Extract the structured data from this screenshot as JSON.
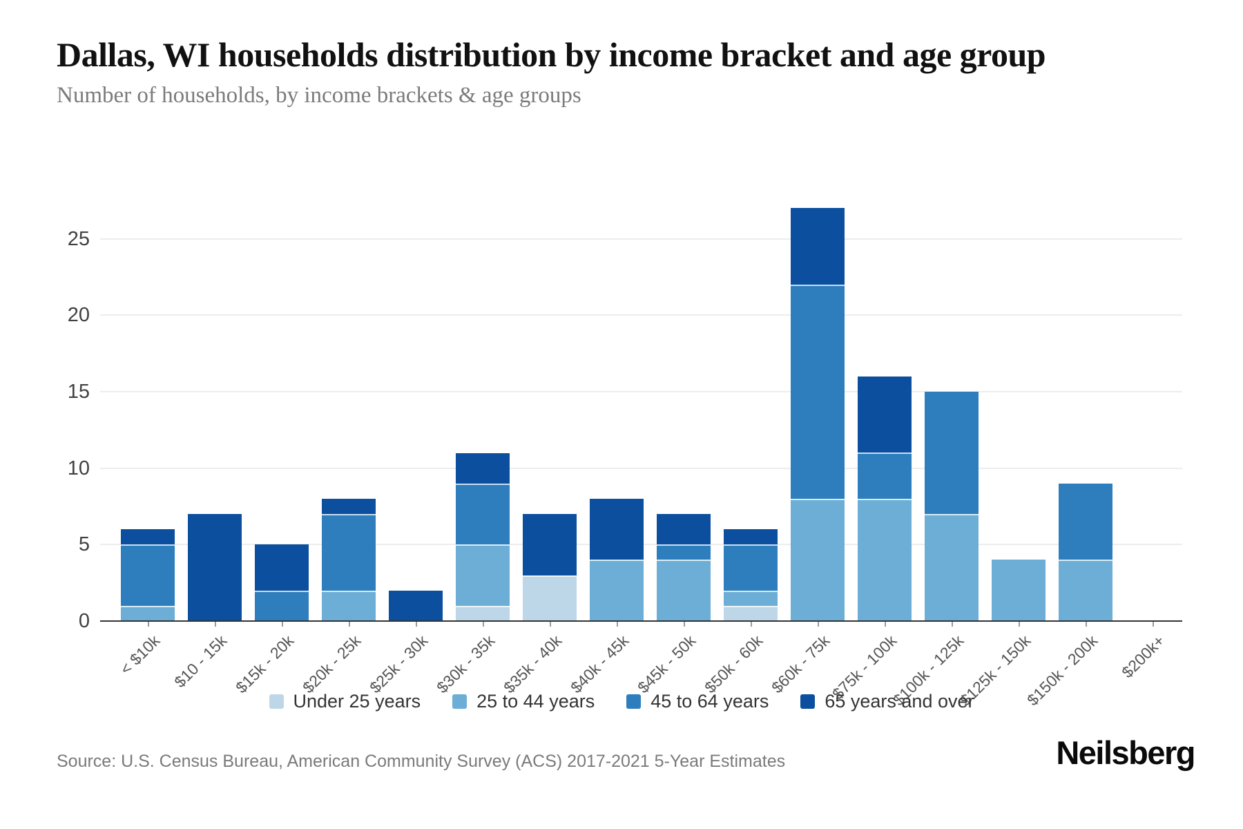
{
  "header": {
    "title": "Dallas, WI households distribution by income bracket and age group",
    "subtitle": "Number of households, by income brackets & age groups"
  },
  "chart_data": {
    "type": "bar",
    "stacked": true,
    "title": "Dallas, WI households distribution by income bracket and age group",
    "subtitle": "Number of households, by income brackets & age groups",
    "xlabel": "",
    "ylabel": "",
    "ylim": [
      0,
      27
    ],
    "yticks": [
      0,
      5,
      10,
      15,
      20,
      25
    ],
    "grid": true,
    "legend_position": "bottom",
    "categories": [
      "< $10k",
      "$10 - 15k",
      "$15k - 20k",
      "$20k - 25k",
      "$25k - 30k",
      "$30k - 35k",
      "$35k - 40k",
      "$40k - 45k",
      "$45k - 50k",
      "$50k - 60k",
      "$60k - 75k",
      "$75k - 100k",
      "$100k - 125k",
      "$125k - 150k",
      "$150k - 200k",
      "$200k+"
    ],
    "series": [
      {
        "name": "Under 25 years",
        "color": "#bdd7e8",
        "values": [
          0,
          0,
          0,
          0,
          0,
          1,
          3,
          0,
          0,
          1,
          0,
          0,
          0,
          0,
          0,
          0
        ]
      },
      {
        "name": "25 to 44 years",
        "color": "#6caed6",
        "values": [
          1,
          0,
          0,
          2,
          0,
          4,
          0,
          4,
          4,
          1,
          8,
          8,
          7,
          4,
          4,
          0
        ]
      },
      {
        "name": "45 to 64 years",
        "color": "#2e7ebe",
        "values": [
          4,
          0,
          2,
          5,
          0,
          4,
          0,
          0,
          1,
          3,
          14,
          3,
          8,
          0,
          5,
          0
        ]
      },
      {
        "name": "65 years and over",
        "color": "#0b4f9e",
        "values": [
          1,
          7,
          3,
          1,
          2,
          2,
          4,
          4,
          2,
          1,
          5,
          5,
          0,
          0,
          0,
          0
        ]
      }
    ],
    "totals": [
      6,
      7,
      5,
      8,
      2,
      11,
      7,
      8,
      7,
      6,
      27,
      16,
      15,
      4,
      9,
      0
    ]
  },
  "footer": {
    "source": "Source: U.S. Census Bureau, American Community Survey (ACS) 2017-2021 5-Year Estimates",
    "brand": "Neilsberg"
  }
}
